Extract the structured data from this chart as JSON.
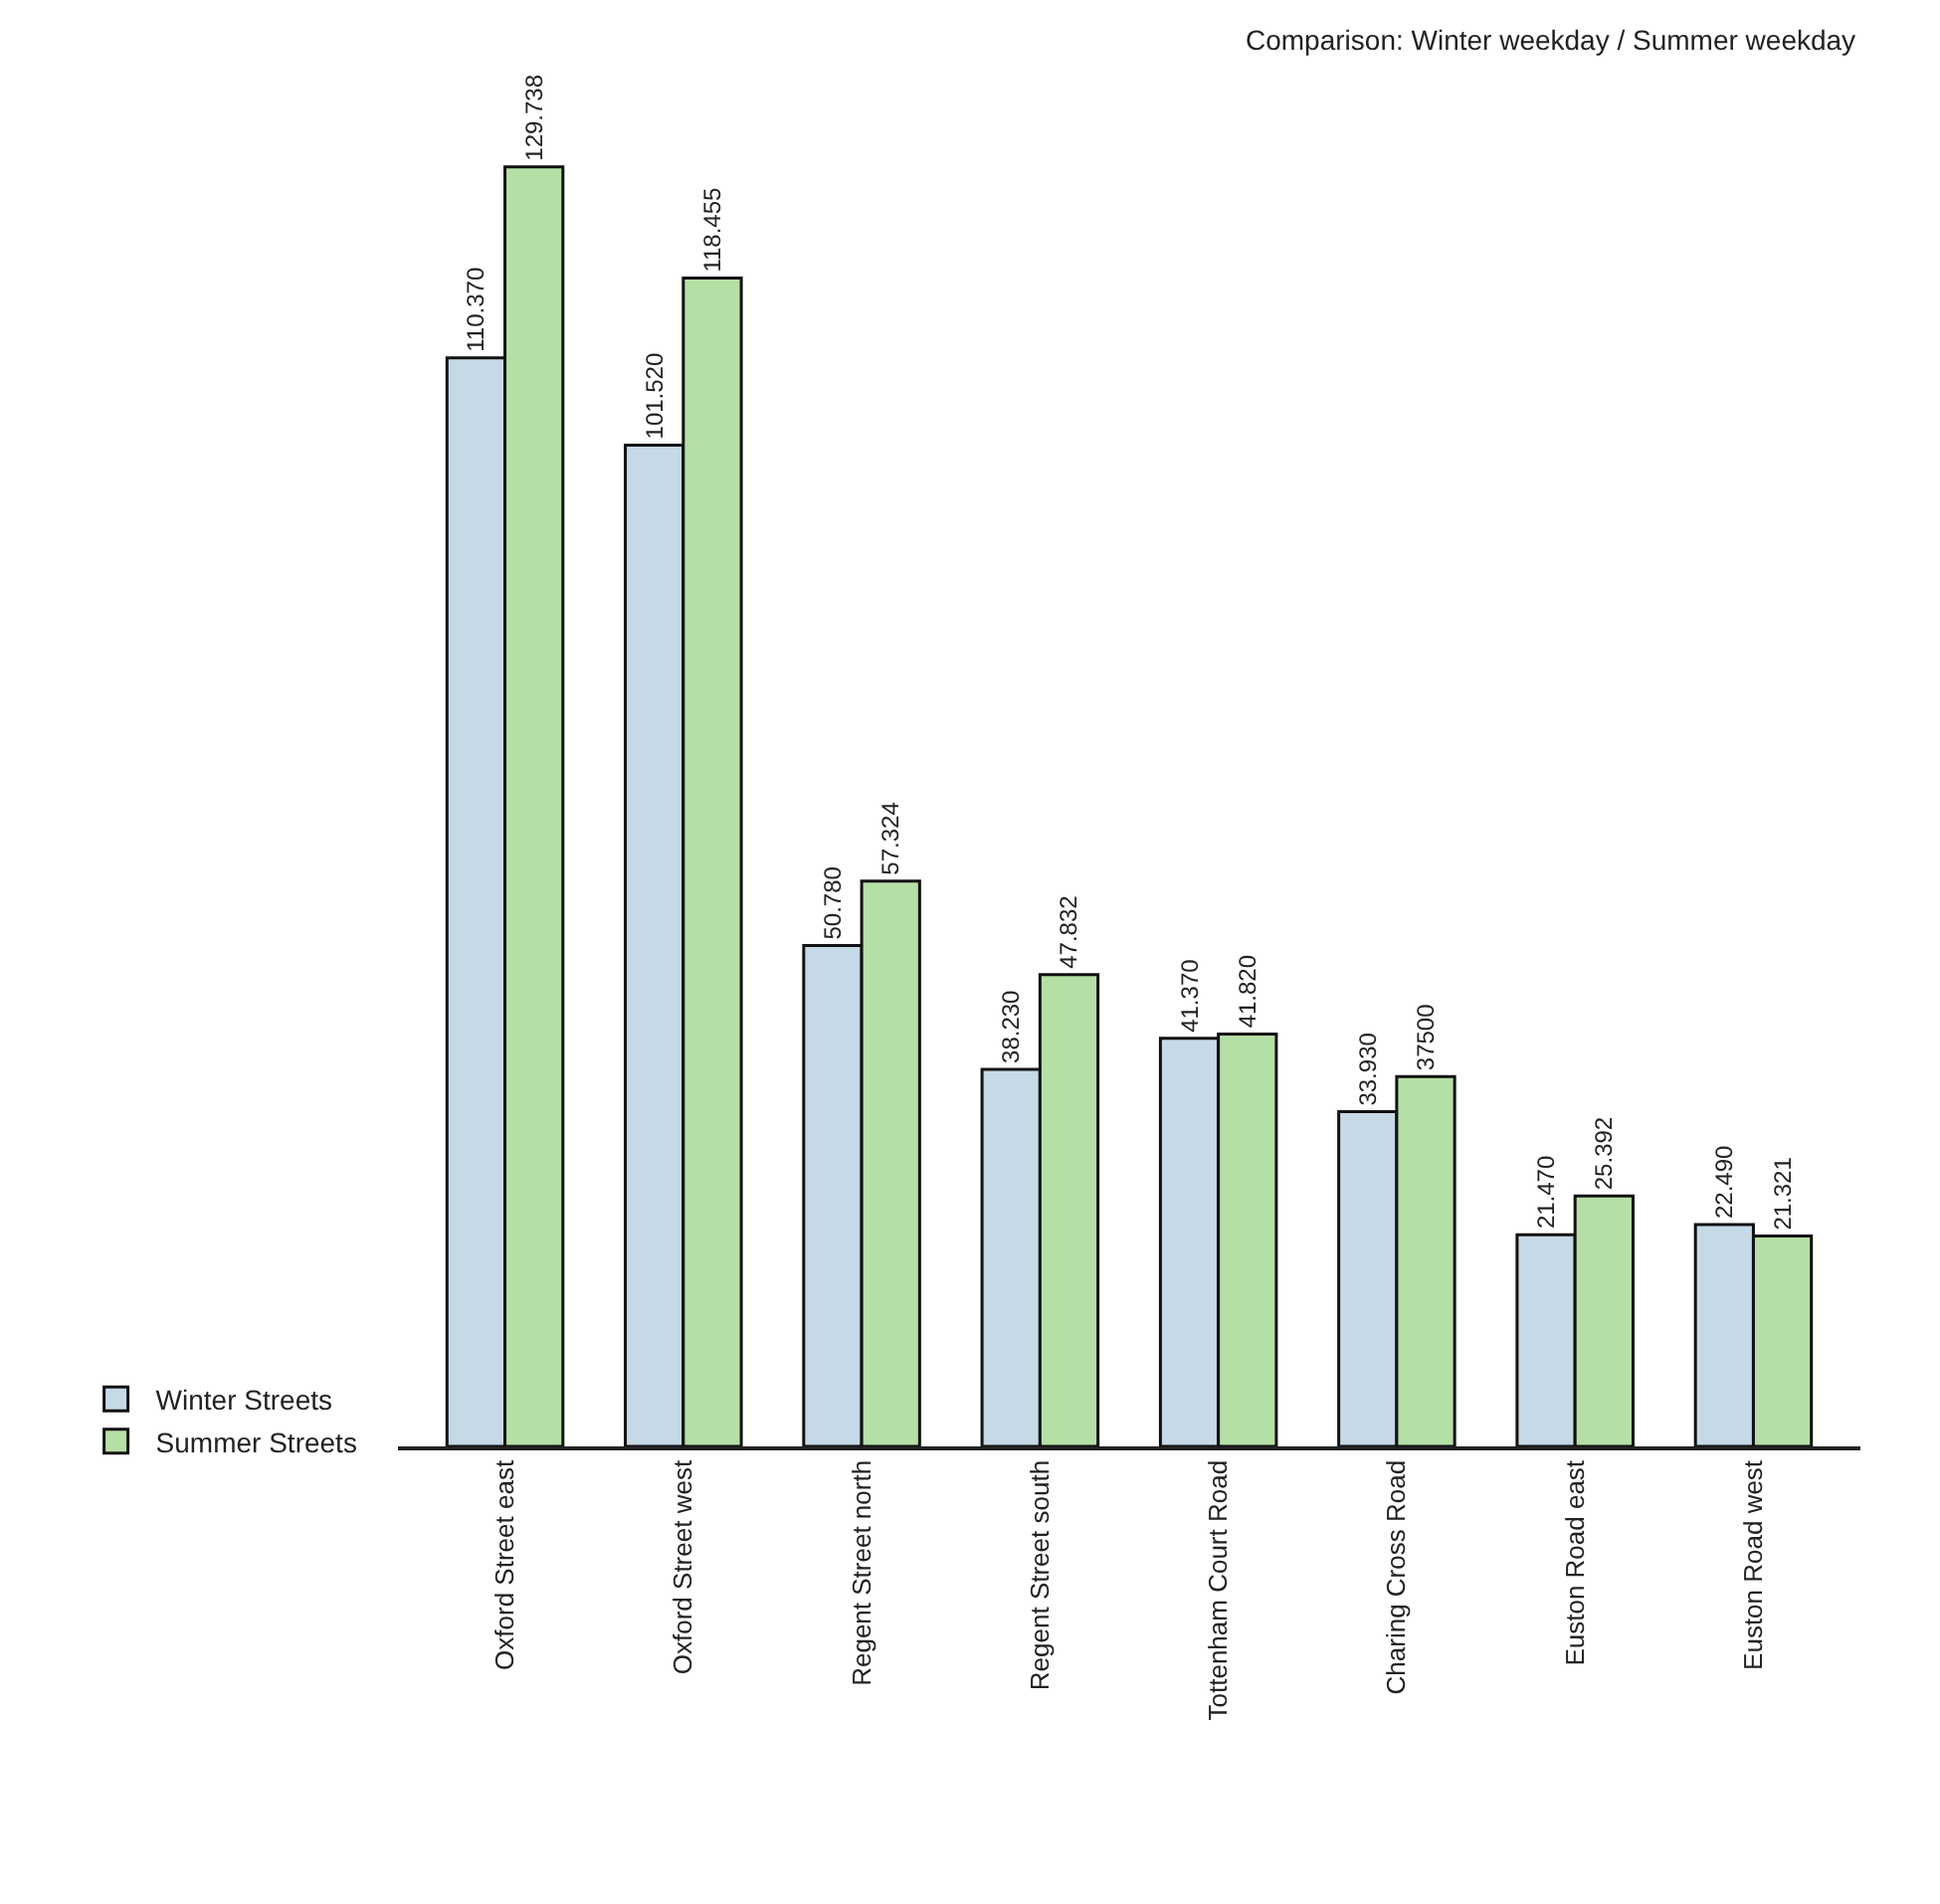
{
  "chart_data": {
    "type": "bar",
    "title": "Comparison: Winter weekday / Summer weekday",
    "categories": [
      "Oxford Street east",
      "Oxford Street west",
      "Regent Street north",
      "Regent Street south",
      "Tottenham Court Road",
      "Charing Cross Road",
      "Euston Road east",
      "Euston Road west"
    ],
    "series": [
      {
        "name": "Winter Streets",
        "color": "#c5d9e6",
        "values": [
          110370,
          101520,
          50780,
          38230,
          41370,
          33930,
          21470,
          22490
        ],
        "value_labels": [
          "110.370",
          "101.520",
          "50.780",
          "38.230",
          "41.370",
          "33.930",
          "21.470",
          "22.490"
        ]
      },
      {
        "name": "Summer Streets",
        "color": "#b5e0a5",
        "values": [
          129738,
          118455,
          57324,
          47832,
          41820,
          37500,
          25392,
          21321
        ],
        "value_labels": [
          "129.738",
          "118.455",
          "57.324",
          "47.832",
          "41.820",
          "37500",
          "25.392",
          "21.321"
        ]
      }
    ],
    "legend": "bottom left",
    "tick_labels": "x"
  }
}
